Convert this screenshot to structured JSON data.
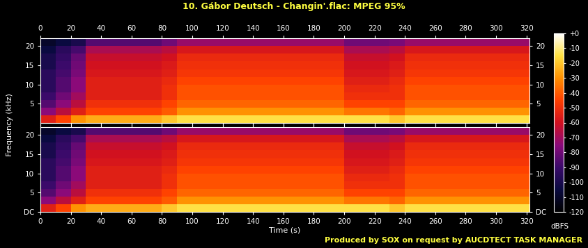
{
  "chart_data": {
    "type": "heatmap",
    "title": "10. Gábor Deutsch - Changin'.flac: MPEG 95%",
    "annotations": [
      "Produced by SOX on request by AUCDTECT TASK MANAGER"
    ],
    "x_label": "Time (s)",
    "y_label": "Frequency (kHz)",
    "xlim": [
      0,
      322
    ],
    "ylim": [
      0,
      22.05
    ],
    "xticks": [
      0,
      20,
      40,
      60,
      80,
      100,
      120,
      140,
      160,
      180,
      200,
      220,
      240,
      260,
      280,
      300,
      320
    ],
    "x_edges": [
      0,
      10,
      20,
      30,
      40,
      50,
      60,
      70,
      80,
      90,
      100,
      110,
      120,
      130,
      140,
      150,
      160,
      170,
      180,
      190,
      200,
      210,
      220,
      230,
      240,
      250,
      260,
      270,
      280,
      290,
      300,
      310,
      320,
      322
    ],
    "y_edges": [
      0,
      2,
      4,
      6,
      8,
      10,
      12,
      14,
      16,
      18,
      20,
      22.05
    ],
    "panels": [
      {
        "yticks": [
          5,
          10,
          15,
          20
        ],
        "cells": [
          [
            -55,
            -45,
            -30,
            -25,
            -25,
            -25,
            -25,
            -25,
            -20,
            -15,
            -15,
            -15,
            -15,
            -15,
            -15,
            -15,
            -15,
            -15,
            -15,
            -15,
            -15,
            -15,
            -15,
            -20,
            -15,
            -15,
            -15,
            -15,
            -15,
            -15,
            -15,
            -15,
            -15
          ],
          [
            -75,
            -65,
            -55,
            -45,
            -45,
            -45,
            -45,
            -45,
            -40,
            -30,
            -30,
            -30,
            -30,
            -30,
            -30,
            -30,
            -30,
            -30,
            -30,
            -30,
            -35,
            -35,
            -35,
            -38,
            -30,
            -30,
            -30,
            -30,
            -30,
            -30,
            -30,
            -30,
            -30
          ],
          [
            -85,
            -75,
            -65,
            -50,
            -50,
            -50,
            -50,
            -50,
            -45,
            -38,
            -38,
            -38,
            -38,
            -38,
            -38,
            -38,
            -38,
            -38,
            -38,
            -38,
            -45,
            -45,
            -45,
            -45,
            -38,
            -38,
            -38,
            -38,
            -38,
            -38,
            -38,
            -38,
            -38
          ],
          [
            -90,
            -80,
            -70,
            -55,
            -55,
            -55,
            -55,
            -55,
            -50,
            -42,
            -42,
            -42,
            -42,
            -42,
            -42,
            -42,
            -42,
            -42,
            -42,
            -42,
            -50,
            -50,
            -50,
            -50,
            -42,
            -42,
            -42,
            -42,
            -42,
            -42,
            -42,
            -42,
            -42
          ],
          [
            -95,
            -85,
            -75,
            -55,
            -55,
            -55,
            -55,
            -55,
            -50,
            -42,
            -42,
            -42,
            -42,
            -42,
            -42,
            -42,
            -42,
            -42,
            -42,
            -42,
            -52,
            -52,
            -52,
            -50,
            -42,
            -42,
            -42,
            -42,
            -42,
            -42,
            -42,
            -42,
            -42
          ],
          [
            -95,
            -85,
            -75,
            -55,
            -55,
            -55,
            -55,
            -55,
            -52,
            -45,
            -45,
            -45,
            -45,
            -45,
            -45,
            -45,
            -45,
            -45,
            -45,
            -45,
            -55,
            -55,
            -55,
            -52,
            -45,
            -45,
            -45,
            -45,
            -45,
            -45,
            -45,
            -45,
            -45
          ],
          [
            -95,
            -88,
            -78,
            -58,
            -58,
            -58,
            -58,
            -58,
            -55,
            -48,
            -48,
            -48,
            -48,
            -48,
            -48,
            -48,
            -48,
            -48,
            -48,
            -48,
            -58,
            -58,
            -58,
            -55,
            -48,
            -48,
            -48,
            -48,
            -48,
            -48,
            -48,
            -48,
            -48
          ],
          [
            -100,
            -90,
            -80,
            -60,
            -60,
            -60,
            -60,
            -60,
            -57,
            -50,
            -50,
            -50,
            -50,
            -50,
            -50,
            -50,
            -50,
            -50,
            -50,
            -50,
            -60,
            -60,
            -60,
            -57,
            -50,
            -50,
            -50,
            -50,
            -50,
            -50,
            -50,
            -50,
            -50
          ],
          [
            -100,
            -92,
            -82,
            -62,
            -62,
            -62,
            -62,
            -62,
            -60,
            -52,
            -52,
            -52,
            -52,
            -52,
            -52,
            -52,
            -52,
            -52,
            -52,
            -52,
            -62,
            -62,
            -62,
            -60,
            -52,
            -52,
            -52,
            -52,
            -52,
            -52,
            -52,
            -52,
            -52
          ],
          [
            -105,
            -95,
            -88,
            -68,
            -68,
            -68,
            -68,
            -68,
            -65,
            -58,
            -58,
            -58,
            -58,
            -58,
            -58,
            -58,
            -58,
            -58,
            -58,
            -58,
            -68,
            -68,
            -68,
            -65,
            -58,
            -58,
            -58,
            -58,
            -58,
            -58,
            -58,
            -58,
            -58
          ],
          [
            -110,
            -105,
            -100,
            -85,
            -85,
            -85,
            -85,
            -85,
            -80,
            -72,
            -72,
            -72,
            -72,
            -72,
            -72,
            -72,
            -72,
            -72,
            -72,
            -72,
            -80,
            -80,
            -80,
            -78,
            -72,
            -72,
            -72,
            -72,
            -72,
            -72,
            -72,
            -72,
            -72
          ]
        ]
      },
      {
        "yticks": [
          {
            "value": 0,
            "label": "DC"
          },
          5,
          10,
          15,
          20
        ],
        "cells": [
          [
            -55,
            -45,
            -30,
            -25,
            -25,
            -25,
            -25,
            -25,
            -20,
            -15,
            -15,
            -15,
            -15,
            -15,
            -15,
            -15,
            -15,
            -15,
            -15,
            -15,
            -15,
            -15,
            -15,
            -20,
            -15,
            -15,
            -15,
            -15,
            -15,
            -15,
            -15,
            -15,
            -15
          ],
          [
            -75,
            -65,
            -55,
            -45,
            -45,
            -45,
            -45,
            -45,
            -40,
            -30,
            -30,
            -30,
            -30,
            -30,
            -30,
            -30,
            -30,
            -30,
            -30,
            -30,
            -35,
            -35,
            -35,
            -38,
            -30,
            -30,
            -30,
            -30,
            -30,
            -30,
            -30,
            -30,
            -30
          ],
          [
            -85,
            -75,
            -65,
            -50,
            -50,
            -50,
            -50,
            -50,
            -45,
            -38,
            -38,
            -38,
            -38,
            -38,
            -38,
            -38,
            -38,
            -38,
            -38,
            -38,
            -45,
            -45,
            -45,
            -45,
            -38,
            -38,
            -38,
            -38,
            -38,
            -38,
            -38,
            -38,
            -38
          ],
          [
            -90,
            -80,
            -70,
            -55,
            -55,
            -55,
            -55,
            -55,
            -50,
            -42,
            -42,
            -42,
            -42,
            -42,
            -42,
            -42,
            -42,
            -42,
            -42,
            -42,
            -50,
            -50,
            -50,
            -50,
            -42,
            -42,
            -42,
            -42,
            -42,
            -42,
            -42,
            -42,
            -42
          ],
          [
            -95,
            -85,
            -75,
            -55,
            -55,
            -55,
            -55,
            -55,
            -50,
            -42,
            -42,
            -42,
            -42,
            -42,
            -42,
            -42,
            -42,
            -42,
            -42,
            -42,
            -52,
            -52,
            -52,
            -50,
            -42,
            -42,
            -42,
            -42,
            -42,
            -42,
            -42,
            -42,
            -42
          ],
          [
            -95,
            -85,
            -75,
            -55,
            -55,
            -55,
            -55,
            -55,
            -52,
            -45,
            -45,
            -45,
            -45,
            -45,
            -45,
            -45,
            -45,
            -45,
            -45,
            -45,
            -55,
            -55,
            -55,
            -52,
            -45,
            -45,
            -45,
            -45,
            -45,
            -45,
            -45,
            -45,
            -45
          ],
          [
            -95,
            -88,
            -78,
            -58,
            -58,
            -58,
            -58,
            -58,
            -55,
            -48,
            -48,
            -48,
            -48,
            -48,
            -48,
            -48,
            -48,
            -48,
            -48,
            -48,
            -58,
            -58,
            -58,
            -55,
            -48,
            -48,
            -48,
            -48,
            -48,
            -48,
            -48,
            -48,
            -48
          ],
          [
            -100,
            -90,
            -80,
            -60,
            -60,
            -60,
            -60,
            -60,
            -57,
            -50,
            -50,
            -50,
            -50,
            -50,
            -50,
            -50,
            -50,
            -50,
            -50,
            -50,
            -60,
            -60,
            -60,
            -57,
            -50,
            -50,
            -50,
            -50,
            -50,
            -50,
            -50,
            -50,
            -50
          ],
          [
            -100,
            -92,
            -82,
            -62,
            -62,
            -62,
            -62,
            -62,
            -60,
            -52,
            -52,
            -52,
            -52,
            -52,
            -52,
            -52,
            -52,
            -52,
            -52,
            -52,
            -62,
            -62,
            -62,
            -60,
            -52,
            -52,
            -52,
            -52,
            -52,
            -52,
            -52,
            -52,
            -52
          ],
          [
            -105,
            -95,
            -88,
            -68,
            -68,
            -68,
            -68,
            -68,
            -65,
            -58,
            -58,
            -58,
            -58,
            -58,
            -58,
            -58,
            -58,
            -58,
            -58,
            -58,
            -68,
            -68,
            -68,
            -65,
            -58,
            -58,
            -58,
            -58,
            -58,
            -58,
            -58,
            -58,
            -58
          ],
          [
            -110,
            -105,
            -100,
            -85,
            -85,
            -85,
            -85,
            -85,
            -80,
            -72,
            -72,
            -72,
            -72,
            -72,
            -72,
            -72,
            -72,
            -72,
            -72,
            -72,
            -80,
            -80,
            -80,
            -78,
            -72,
            -72,
            -72,
            -72,
            -72,
            -72,
            -72,
            -72,
            -72
          ]
        ]
      }
    ],
    "colorbar": {
      "label": "dBFS",
      "range": [
        -120,
        0
      ],
      "ticks": [
        {
          "value": 0,
          "label": "+0"
        },
        -10,
        -20,
        -30,
        -40,
        -50,
        -60,
        -70,
        -80,
        -90,
        -100,
        -110,
        -120
      ]
    }
  }
}
